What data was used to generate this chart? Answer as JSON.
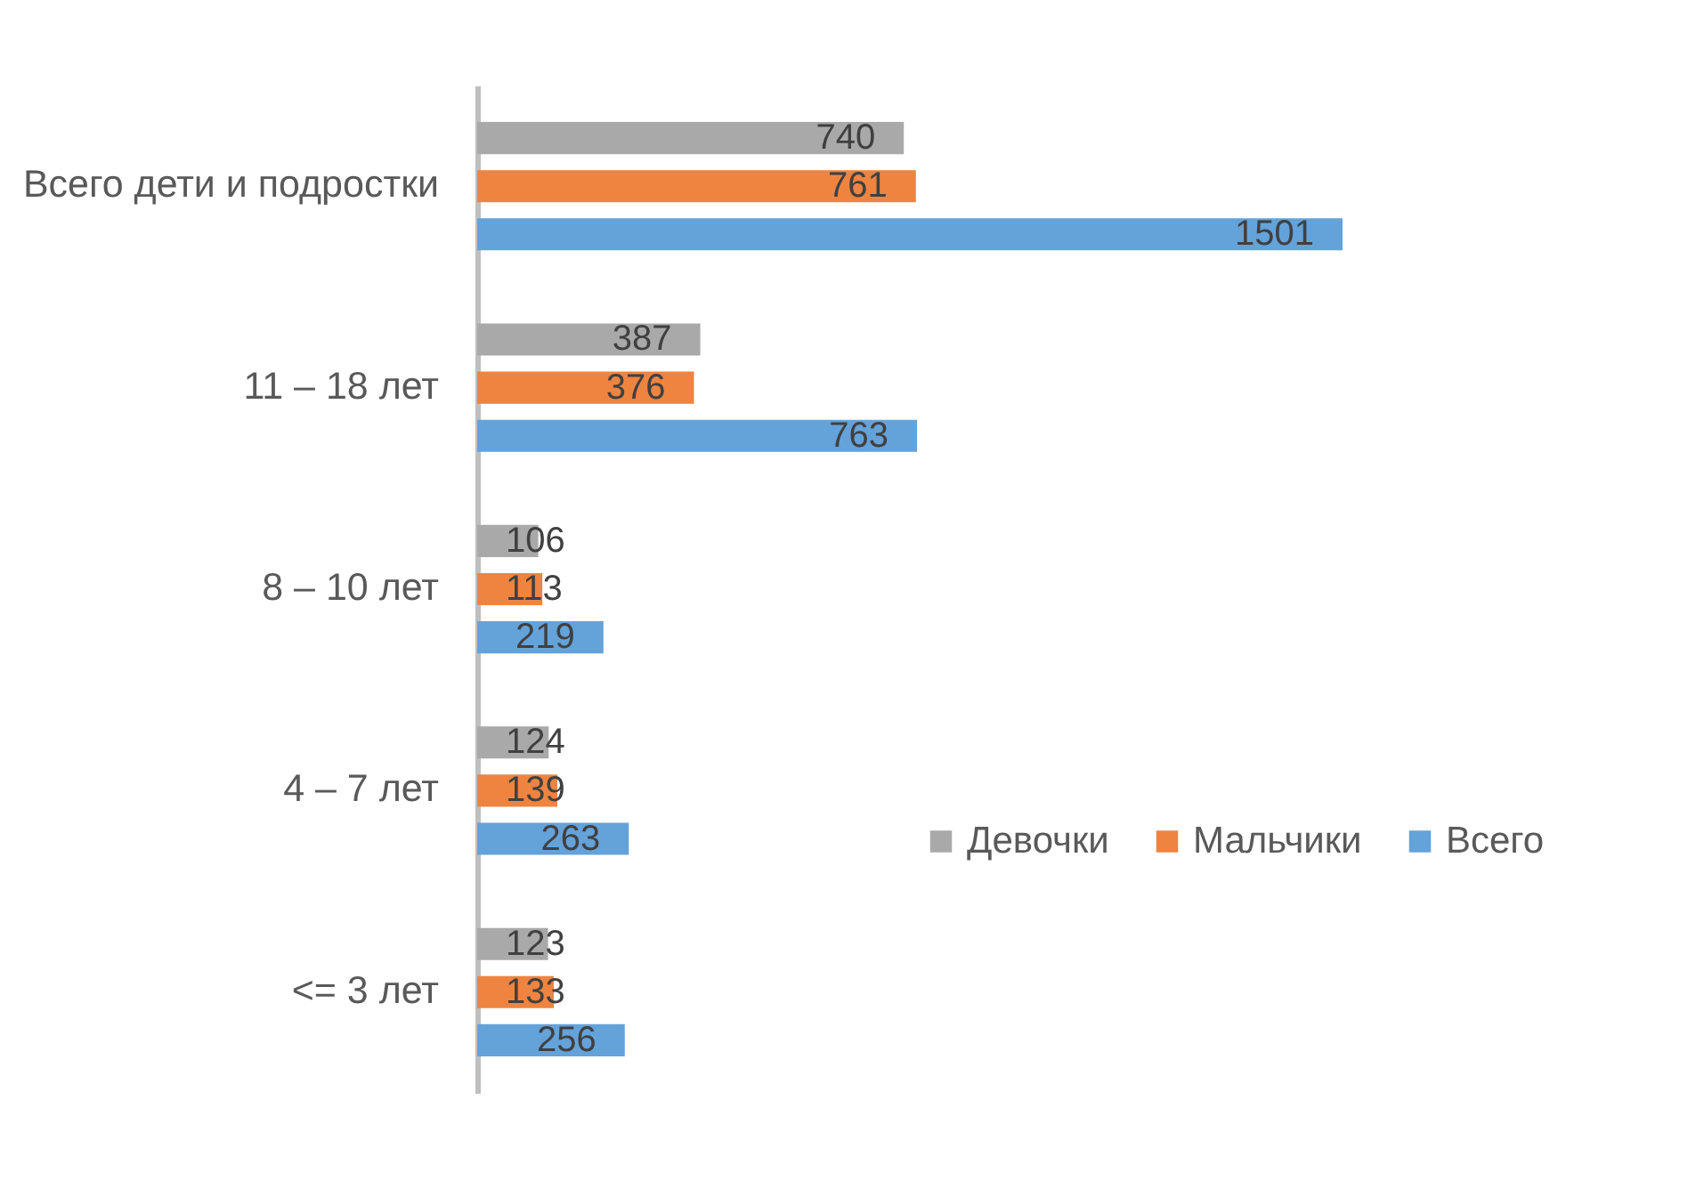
{
  "chart_data": {
    "type": "bar",
    "orientation": "horizontal",
    "categories": [
      "Всего дети и подростки",
      "11 – 18 лет",
      "8 – 10 лет",
      "4 – 7 лет",
      "<= 3 лет"
    ],
    "series": [
      {
        "name": "Девочки",
        "color": "#a9a9a9",
        "values": [
          740,
          387,
          106,
          124,
          123
        ]
      },
      {
        "name": "Мальчики",
        "color": "#ee8440",
        "values": [
          761,
          376,
          113,
          139,
          133
        ]
      },
      {
        "name": "Всего",
        "color": "#64a2da",
        "values": [
          1501,
          763,
          219,
          263,
          256
        ]
      }
    ],
    "data_labels": true,
    "legend": "right",
    "tick_labels": "y"
  }
}
